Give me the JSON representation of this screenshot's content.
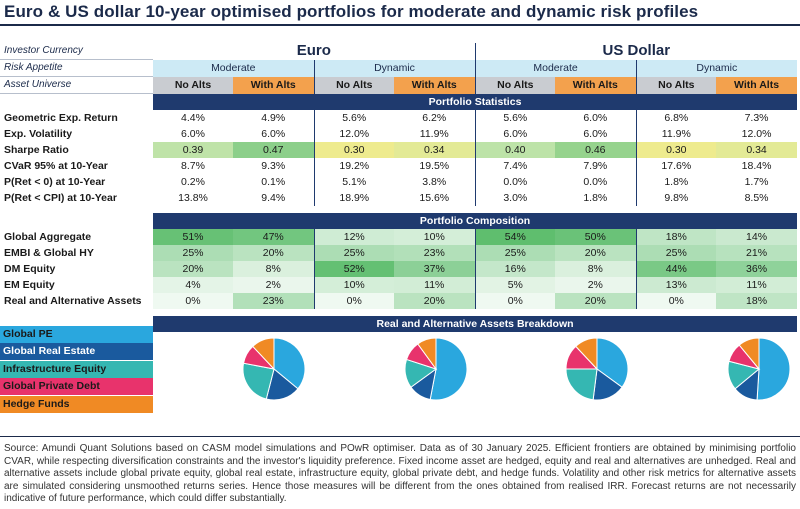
{
  "title": "Euro & US dollar 10-year optimised portfolios for moderate and dynamic risk profiles",
  "row_labels": {
    "investor_currency": "Investor Currency",
    "risk_appetite": "Risk Appetite",
    "asset_universe": "Asset Universe"
  },
  "currencies": [
    "Euro",
    "US Dollar"
  ],
  "risk_profiles": [
    "Moderate",
    "Dynamic",
    "Moderate",
    "Dynamic"
  ],
  "universe": [
    "No Alts",
    "With Alts",
    "No Alts",
    "With Alts",
    "No Alts",
    "With Alts",
    "No Alts",
    "With Alts"
  ],
  "sections": {
    "statistics": "Portfolio Statistics",
    "composition": "Portfolio Composition",
    "breakdown": "Real and Alternative Assets Breakdown"
  },
  "colors": {
    "navy": "#1f3a6e",
    "sub_header": "#cdeaf5",
    "no_alts": "#c9ccd1",
    "with_alts": "#f3a14d",
    "sharpe_green": "#8ccf8a",
    "sharpe_lgreen": "#bfe3a8",
    "sharpe_yellow": "#eeeb8e"
  },
  "chart_data": [
    {
      "type": "table",
      "title": "Portfolio Statistics",
      "columns": [
        "Euro Moderate No Alts",
        "Euro Moderate With Alts",
        "Euro Dynamic No Alts",
        "Euro Dynamic With Alts",
        "USD Moderate No Alts",
        "USD Moderate With Alts",
        "USD Dynamic No Alts",
        "USD Dynamic With Alts"
      ],
      "rows": [
        {
          "label": "Geometric Exp. Return",
          "values": [
            "4.4%",
            "4.9%",
            "5.6%",
            "6.2%",
            "5.6%",
            "6.0%",
            "6.8%",
            "7.3%"
          ]
        },
        {
          "label": "Exp. Volatility",
          "values": [
            "6.0%",
            "6.0%",
            "12.0%",
            "11.9%",
            "6.0%",
            "6.0%",
            "11.9%",
            "12.0%"
          ]
        },
        {
          "label": "Sharpe Ratio",
          "values": [
            "0.39",
            "0.47",
            "0.30",
            "0.34",
            "0.40",
            "0.46",
            "0.30",
            "0.34"
          ],
          "shades": [
            "#bfe3a8",
            "#8ccf8a",
            "#eeeb8e",
            "#e3ea96",
            "#bde3a8",
            "#96d38d",
            "#eeeb8e",
            "#e3ea96"
          ]
        },
        {
          "label": "CVaR 95% at 10-Year",
          "values": [
            "8.7%",
            "9.3%",
            "19.2%",
            "19.5%",
            "7.4%",
            "7.9%",
            "17.6%",
            "18.4%"
          ]
        },
        {
          "label": "P(Ret < 0) at 10-Year",
          "values": [
            "0.2%",
            "0.1%",
            "5.1%",
            "3.8%",
            "0.0%",
            "0.0%",
            "1.8%",
            "1.7%"
          ]
        },
        {
          "label": "P(Ret < CPI) at 10-Year",
          "values": [
            "13.8%",
            "9.4%",
            "18.9%",
            "15.6%",
            "3.0%",
            "1.8%",
            "9.8%",
            "8.5%"
          ]
        }
      ]
    },
    {
      "type": "heatmap",
      "title": "Portfolio Composition",
      "rows": [
        {
          "label": "Global Aggregate",
          "values": [
            "51%",
            "47%",
            "12%",
            "10%",
            "54%",
            "50%",
            "18%",
            "14%"
          ]
        },
        {
          "label": "EMBI & Global HY",
          "values": [
            "25%",
            "20%",
            "25%",
            "23%",
            "25%",
            "20%",
            "25%",
            "21%"
          ]
        },
        {
          "label": "DM Equity",
          "values": [
            "20%",
            "8%",
            "52%",
            "37%",
            "16%",
            "8%",
            "44%",
            "36%"
          ]
        },
        {
          "label": "EM Equity",
          "values": [
            "4%",
            "2%",
            "10%",
            "11%",
            "5%",
            "2%",
            "13%",
            "11%"
          ]
        },
        {
          "label": "Real and Alternative Assets",
          "values": [
            "0%",
            "23%",
            "0%",
            "20%",
            "0%",
            "20%",
            "0%",
            "18%"
          ]
        }
      ],
      "numeric": [
        [
          51,
          47,
          12,
          10,
          54,
          50,
          18,
          14
        ],
        [
          25,
          20,
          25,
          23,
          25,
          20,
          25,
          21
        ],
        [
          20,
          8,
          52,
          37,
          16,
          8,
          44,
          36
        ],
        [
          4,
          2,
          10,
          11,
          5,
          2,
          13,
          11
        ],
        [
          0,
          23,
          0,
          20,
          0,
          20,
          0,
          18
        ]
      ]
    },
    {
      "type": "pie",
      "title": "Real and Alternative Assets Breakdown",
      "legend": "left",
      "categories": [
        "Global PE",
        "Global Real Estate",
        "Infrastructure Equity",
        "Global Private Debt",
        "Hedge Funds"
      ],
      "colors": [
        "#2aa7de",
        "#1a5a9e",
        "#35b7b2",
        "#e8336c",
        "#f08a24"
      ],
      "series": [
        {
          "name": "Euro Moderate With Alts",
          "values": [
            36,
            18,
            24,
            10,
            12
          ]
        },
        {
          "name": "Euro Dynamic With Alts",
          "values": [
            53,
            12,
            15,
            10,
            10
          ]
        },
        {
          "name": "USD Moderate With Alts",
          "values": [
            35,
            17,
            23,
            13,
            12
          ]
        },
        {
          "name": "USD Dynamic With Alts",
          "values": [
            51,
            13,
            15,
            10,
            11
          ]
        }
      ]
    }
  ],
  "footnote": "Source: Amundi Quant Solutions based on CASM model simulations and POwR optimiser. Data as of 30 January 2025. Efficient frontiers are obtained by minimising portfolio CVAR, while respecting diversification constraints and the investor's liquidity preference. Fixed income asset are hedged, equity and real and alternatives are unhedged. Real and alternative assets include global private equity, global real estate, infrastructure equity, global private debt, and hedge funds. Volatility and other risk metrics for alternative assets are simulated considering unsmoothed returns series. Hence those measures will be different from the ones obtained from realised IRR. Forecast returns are not necessarily indicative of future performance, which could differ substantially."
}
